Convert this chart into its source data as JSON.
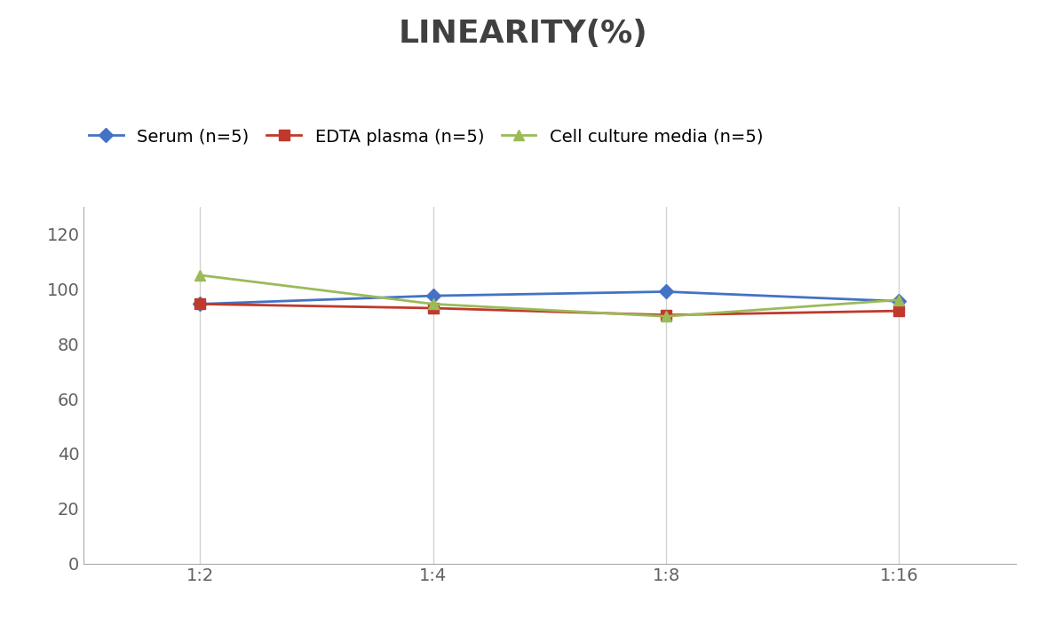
{
  "title": "LINEARITY(%)",
  "x_labels": [
    "1:2",
    "1:4",
    "1:8",
    "1:16"
  ],
  "x_positions": [
    0,
    1,
    2,
    3
  ],
  "series": [
    {
      "label": "Serum (n=5)",
      "values": [
        94.5,
        97.5,
        99.0,
        95.5
      ],
      "color": "#4472C4",
      "marker": "D",
      "markersize": 8,
      "linewidth": 2
    },
    {
      "label": "EDTA plasma (n=5)",
      "values": [
        94.5,
        93.0,
        90.5,
        92.0
      ],
      "color": "#C0392B",
      "marker": "s",
      "markersize": 8,
      "linewidth": 2
    },
    {
      "label": "Cell culture media (n=5)",
      "values": [
        105.0,
        94.5,
        90.0,
        96.0
      ],
      "color": "#9BBB59",
      "marker": "^",
      "markersize": 9,
      "linewidth": 2
    }
  ],
  "ylim": [
    0,
    130
  ],
  "yticks": [
    0,
    20,
    40,
    60,
    80,
    100,
    120
  ],
  "title_fontsize": 26,
  "legend_fontsize": 14,
  "tick_fontsize": 14,
  "background_color": "#FFFFFF",
  "grid_color": "#D3D3D3",
  "title_color": "#404040",
  "tick_color": "#606060"
}
